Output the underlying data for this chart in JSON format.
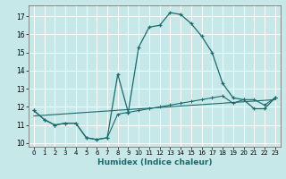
{
  "xlabel": "Humidex (Indice chaleur)",
  "background_color": "#c6e8e8",
  "grid_color": "#ffffff",
  "line_color": "#1a6b6b",
  "xlim": [
    -0.5,
    23.5
  ],
  "ylim": [
    9.8,
    17.6
  ],
  "yticks": [
    10,
    11,
    12,
    13,
    14,
    15,
    16,
    17
  ],
  "xticks": [
    0,
    1,
    2,
    3,
    4,
    5,
    6,
    7,
    8,
    9,
    10,
    11,
    12,
    13,
    14,
    15,
    16,
    17,
    18,
    19,
    20,
    21,
    22,
    23
  ],
  "series1_x": [
    0,
    1,
    2,
    3,
    4,
    5,
    6,
    7,
    8,
    9,
    10,
    11,
    12,
    13,
    14,
    15,
    16,
    17,
    18,
    19,
    20,
    21,
    22,
    23
  ],
  "series1_y": [
    11.8,
    11.3,
    11.0,
    11.1,
    11.1,
    10.3,
    10.2,
    10.3,
    13.8,
    11.7,
    15.3,
    16.4,
    16.5,
    17.2,
    17.1,
    16.6,
    15.9,
    15.0,
    13.3,
    12.5,
    12.4,
    11.9,
    11.9,
    12.5
  ],
  "series2_x": [
    0,
    1,
    2,
    3,
    4,
    5,
    6,
    7,
    8,
    9,
    10,
    11,
    12,
    13,
    14,
    15,
    16,
    17,
    18,
    19,
    20,
    21,
    22,
    23
  ],
  "series2_y": [
    11.8,
    11.3,
    11.0,
    11.1,
    11.1,
    10.3,
    10.2,
    10.3,
    11.6,
    11.7,
    11.8,
    11.9,
    12.0,
    12.1,
    12.2,
    12.3,
    12.4,
    12.5,
    12.6,
    12.2,
    12.4,
    12.4,
    12.1,
    12.5
  ],
  "series3_x": [
    0,
    23
  ],
  "series3_y": [
    11.5,
    12.4
  ]
}
